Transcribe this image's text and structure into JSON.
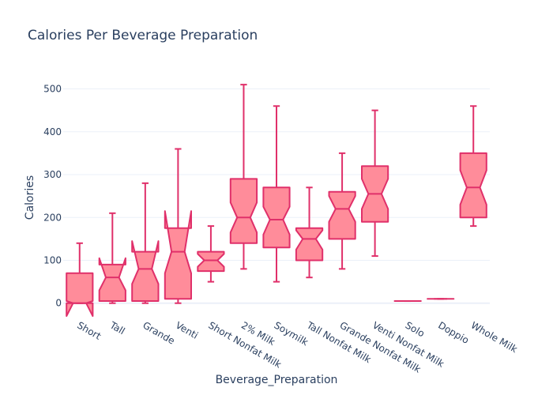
{
  "chart_data": {
    "type": "box",
    "notched": true,
    "title": "Calories Per Beverage Preparation",
    "xlabel": "Beverage_Preparation",
    "ylabel": "Calories",
    "ylim": [
      -30,
      560
    ],
    "yticks": [
      0,
      100,
      200,
      300,
      400,
      500
    ],
    "grid": true,
    "legend": "none",
    "colors": {
      "fill": "#ff8c9a",
      "line": "#e0306a",
      "text": "#2a3f5f",
      "grid": "#ebf0f8"
    },
    "categories": [
      "Short",
      "Tall",
      "Grande",
      "Venti",
      "Short Nonfat Milk",
      "2% Milk",
      "Soymilk",
      "Tall Nonfat Milk",
      "Grande Nonfat Milk",
      "Venti Nonfat Milk",
      "Solo",
      "Doppio",
      "Whole Milk"
    ],
    "boxes": [
      {
        "category": "Short",
        "min": 0,
        "q1": 0,
        "median": 0,
        "q3": 70,
        "max": 140,
        "notch_low": -30,
        "notch_high": 5
      },
      {
        "category": "Tall",
        "min": 0,
        "q1": 5,
        "median": 60,
        "q3": 90,
        "max": 210,
        "notch_low": 30,
        "notch_high": 105
      },
      {
        "category": "Grande",
        "min": 0,
        "q1": 5,
        "median": 80,
        "q3": 120,
        "max": 280,
        "notch_low": 45,
        "notch_high": 145
      },
      {
        "category": "Venti",
        "min": 0,
        "q1": 10,
        "median": 120,
        "q3": 175,
        "max": 360,
        "notch_low": 70,
        "notch_high": 215
      },
      {
        "category": "Short Nonfat Milk",
        "min": 50,
        "q1": 75,
        "median": 100,
        "q3": 120,
        "max": 180,
        "notch_low": 85,
        "notch_high": 115
      },
      {
        "category": "2% Milk",
        "min": 80,
        "q1": 140,
        "median": 200,
        "q3": 290,
        "max": 510,
        "notch_low": 165,
        "notch_high": 235
      },
      {
        "category": "Soymilk",
        "min": 50,
        "q1": 130,
        "median": 195,
        "q3": 270,
        "max": 460,
        "notch_low": 160,
        "notch_high": 225
      },
      {
        "category": "Tall Nonfat Milk",
        "min": 60,
        "q1": 100,
        "median": 150,
        "q3": 175,
        "max": 270,
        "notch_low": 125,
        "notch_high": 170
      },
      {
        "category": "Grande Nonfat Milk",
        "min": 80,
        "q1": 150,
        "median": 220,
        "q3": 260,
        "max": 350,
        "notch_low": 190,
        "notch_high": 250
      },
      {
        "category": "Venti Nonfat Milk",
        "min": 110,
        "q1": 190,
        "median": 255,
        "q3": 320,
        "max": 450,
        "notch_low": 220,
        "notch_high": 290
      },
      {
        "category": "Solo",
        "min": 5,
        "q1": 5,
        "median": 5,
        "q3": 5,
        "max": 5,
        "notch_low": 5,
        "notch_high": 5
      },
      {
        "category": "Doppio",
        "min": 10,
        "q1": 10,
        "median": 10,
        "q3": 10,
        "max": 10,
        "notch_low": 10,
        "notch_high": 10
      },
      {
        "category": "Whole Milk",
        "min": 180,
        "q1": 200,
        "median": 270,
        "q3": 350,
        "max": 460,
        "notch_low": 230,
        "notch_high": 310
      }
    ]
  }
}
